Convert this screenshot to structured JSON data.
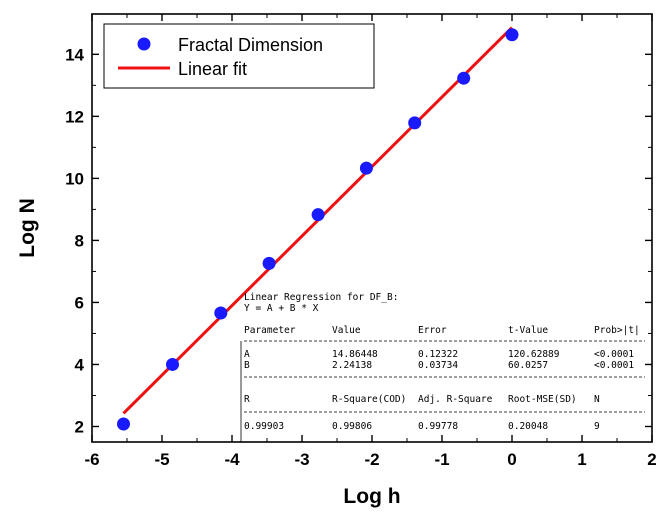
{
  "chart_data": {
    "type": "scatter",
    "title": "",
    "xlabel": "Log h",
    "ylabel": "Log N",
    "xlim": [
      -6,
      2
    ],
    "ylim": [
      1.5,
      15.3
    ],
    "xticks": [
      -6,
      -5,
      -4,
      -3,
      -2,
      -1,
      0,
      1,
      2
    ],
    "yticks": [
      2,
      4,
      6,
      8,
      10,
      12,
      14
    ],
    "grid": false,
    "legend_position": "top-left",
    "series": [
      {
        "name": "Fractal Dimension",
        "kind": "scatter",
        "color": "#1a1aff",
        "x": [
          -5.55,
          -4.85,
          -4.16,
          -3.47,
          -2.77,
          -2.08,
          -1.39,
          -0.69,
          0.0
        ],
        "y": [
          2.08,
          4.0,
          5.66,
          7.26,
          8.83,
          10.33,
          11.79,
          13.23,
          14.63
        ]
      },
      {
        "name": "Linear fit",
        "kind": "line",
        "color": "#ee1111",
        "intercept": 14.86448,
        "slope": 2.24138,
        "x_range": [
          -5.55,
          0.0
        ]
      }
    ]
  },
  "regression_box": {
    "title": "Linear Regression for DF_B:",
    "equation": "Y = A + B * X",
    "param_headers": [
      "Parameter",
      "Value",
      "Error",
      "t-Value",
      "Prob>|t|"
    ],
    "param_rows": [
      [
        "A",
        "14.86448",
        "0.12322",
        "120.62889",
        "<0.0001"
      ],
      [
        "B",
        "2.24138",
        "0.03734",
        "60.0257",
        "<0.0001"
      ]
    ],
    "stat_headers": [
      "R",
      "R-Square(COD)",
      "Adj. R-Square",
      "Root-MSE(SD)",
      "N"
    ],
    "stat_row": [
      "0.99903",
      "0.99806",
      "0.99778",
      "0.20048",
      "9"
    ]
  }
}
